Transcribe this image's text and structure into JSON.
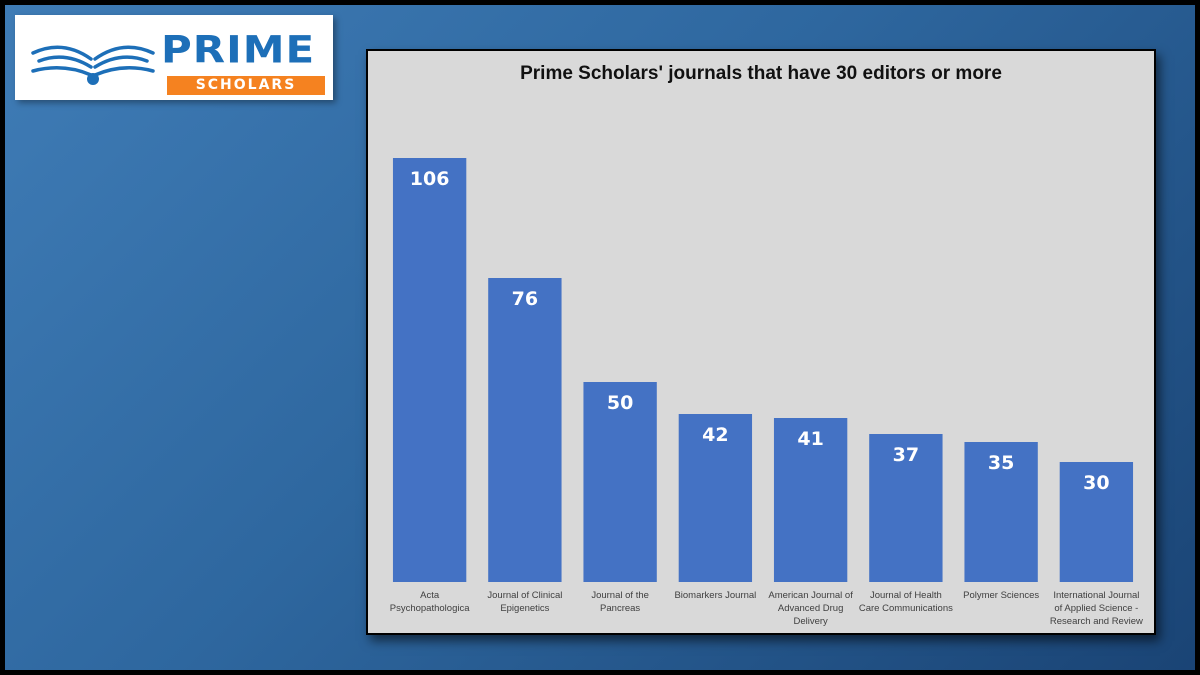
{
  "logo": {
    "word_top": "PRIME",
    "word_bottom": "SCHOLARS",
    "colors": {
      "blue": "#1d6fb8",
      "orange": "#f58220"
    }
  },
  "chart_data": {
    "type": "bar",
    "title": "Prime Scholars' journals that have 30 editors or more",
    "xlabel": "",
    "ylabel": "",
    "categories": [
      [
        "Acta",
        "Psychopathologica"
      ],
      [
        "Journal of Clinical",
        "Epigenetics"
      ],
      [
        "Journal of the",
        "Pancreas"
      ],
      [
        "Biomarkers Journal"
      ],
      [
        "American Journal of",
        "Advanced Drug",
        "Delivery"
      ],
      [
        "Journal of Health",
        "Care Communications"
      ],
      [
        "Polymer Sciences"
      ],
      [
        "International Journal",
        "of Applied Science -",
        "Research and Review"
      ]
    ],
    "values": [
      106,
      76,
      50,
      42,
      41,
      37,
      35,
      30
    ],
    "ylim": [
      0,
      106
    ],
    "grid": false,
    "bar_color": "#4472c4",
    "value_label_color": "#ffffff",
    "background": "#d9d9d9"
  }
}
